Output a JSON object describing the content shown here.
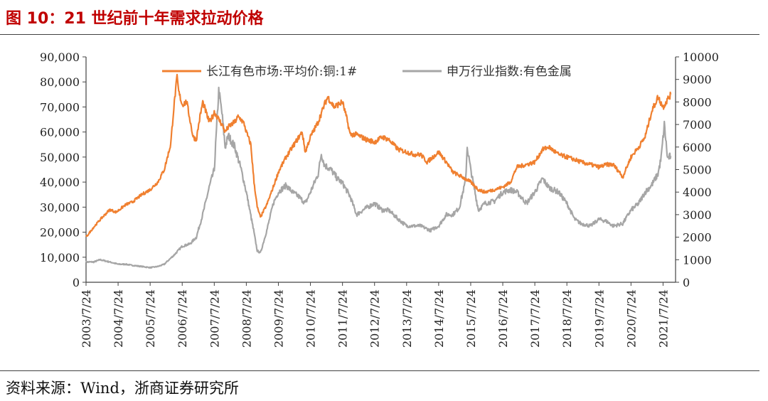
{
  "figure": {
    "title": "图 10：21 世纪前十年需求拉动价格",
    "source": "资料来源：Wind，浙商证券研究所"
  },
  "chart_data": {
    "type": "line",
    "dual_axis": true,
    "x_ticks": [
      "2003/7/24",
      "2004/7/24",
      "2005/7/24",
      "2006/7/24",
      "2007/7/24",
      "2008/7/24",
      "2009/7/24",
      "2010/7/24",
      "2011/7/24",
      "2012/7/24",
      "2013/7/24",
      "2014/7/24",
      "2015/7/24",
      "2016/7/24",
      "2017/7/24",
      "2018/7/24",
      "2019/7/24",
      "2020/7/24",
      "2021/7/24"
    ],
    "y_left": {
      "min": 0,
      "max": 90000,
      "step": 10000,
      "tick_labels": [
        "0",
        "10,000",
        "20,000",
        "30,000",
        "40,000",
        "50,000",
        "60,000",
        "70,000",
        "80,000",
        "90,000"
      ]
    },
    "y_right": {
      "min": 0,
      "max": 10000,
      "step": 1000,
      "tick_labels": [
        "0",
        "1000",
        "2000",
        "3000",
        "4000",
        "5000",
        "6000",
        "7000",
        "8000",
        "9000",
        "10000"
      ]
    },
    "legend_placement": "top-center",
    "series": [
      {
        "name": "长江有色市场:平均价:铜:1#",
        "axis": "left",
        "color": "#f08030",
        "x": [
          2003.56,
          2003.8,
          2004.0,
          2004.3,
          2004.5,
          2004.8,
          2005.0,
          2005.3,
          2005.56,
          2005.8,
          2006.0,
          2006.2,
          2006.3,
          2006.4,
          2006.45,
          2006.56,
          2006.7,
          2006.8,
          2006.9,
          2007.0,
          2007.1,
          2007.2,
          2007.3,
          2007.4,
          2007.5,
          2007.56,
          2007.7,
          2007.8,
          2007.9,
          2008.0,
          2008.2,
          2008.3,
          2008.4,
          2008.5,
          2008.56,
          2008.7,
          2008.8,
          2008.9,
          2009.0,
          2009.2,
          2009.4,
          2009.56,
          2009.8,
          2010.0,
          2010.3,
          2010.4,
          2010.56,
          2010.8,
          2011.0,
          2011.1,
          2011.3,
          2011.56,
          2011.7,
          2011.8,
          2012.0,
          2012.3,
          2012.56,
          2012.8,
          2013.0,
          2013.3,
          2013.56,
          2013.8,
          2014.0,
          2014.2,
          2014.56,
          2014.8,
          2015.0,
          2015.3,
          2015.56,
          2015.8,
          2016.0,
          2016.3,
          2016.56,
          2016.8,
          2017.0,
          2017.3,
          2017.56,
          2017.8,
          2018.0,
          2018.3,
          2018.56,
          2018.8,
          2019.0,
          2019.3,
          2019.56,
          2019.8,
          2020.0,
          2020.2,
          2020.3,
          2020.56,
          2020.8,
          2021.0,
          2021.2,
          2021.4,
          2021.56,
          2021.7,
          2021.8
        ],
        "y": [
          18000,
          22000,
          25000,
          29000,
          28000,
          31000,
          32000,
          35000,
          37000,
          40000,
          45000,
          55000,
          70000,
          82000,
          76000,
          71000,
          72000,
          65000,
          58000,
          57000,
          65000,
          72000,
          68000,
          64000,
          66000,
          68000,
          65000,
          63000,
          60000,
          62000,
          64000,
          66000,
          65000,
          63000,
          60000,
          55000,
          40000,
          30000,
          26000,
          31000,
          38000,
          44000,
          50000,
          54000,
          60000,
          52000,
          58000,
          64000,
          71000,
          74000,
          70000,
          72000,
          65000,
          59000,
          59000,
          57000,
          56000,
          58000,
          57000,
          53000,
          52000,
          51000,
          51000,
          48000,
          52000,
          48000,
          44000,
          42000,
          40000,
          37000,
          36000,
          37000,
          38000,
          40000,
          46000,
          47000,
          48000,
          53000,
          54000,
          51000,
          50000,
          49000,
          48000,
          47000,
          46000,
          47000,
          47000,
          44000,
          42000,
          50000,
          54000,
          58000,
          68000,
          74000,
          70000,
          73000,
          75000
        ]
      },
      {
        "name": "申万行业指数:有色金属",
        "axis": "right",
        "color": "#a6a6a6",
        "x": [
          2003.56,
          2003.8,
          2004.0,
          2004.3,
          2004.56,
          2004.8,
          2005.0,
          2005.3,
          2005.56,
          2005.8,
          2006.0,
          2006.3,
          2006.56,
          2006.8,
          2007.0,
          2007.2,
          2007.4,
          2007.56,
          2007.7,
          2007.8,
          2007.9,
          2008.0,
          2008.2,
          2008.4,
          2008.56,
          2008.8,
          2008.9,
          2009.0,
          2009.2,
          2009.4,
          2009.56,
          2009.8,
          2010.0,
          2010.2,
          2010.4,
          2010.56,
          2010.8,
          2010.9,
          2011.0,
          2011.2,
          2011.4,
          2011.56,
          2011.8,
          2012.0,
          2012.3,
          2012.56,
          2012.8,
          2013.0,
          2013.3,
          2013.56,
          2013.8,
          2014.0,
          2014.3,
          2014.56,
          2014.8,
          2015.0,
          2015.2,
          2015.4,
          2015.45,
          2015.56,
          2015.8,
          2016.0,
          2016.3,
          2016.56,
          2016.8,
          2017.0,
          2017.3,
          2017.56,
          2017.8,
          2018.0,
          2018.3,
          2018.56,
          2018.8,
          2019.0,
          2019.3,
          2019.56,
          2019.8,
          2020.0,
          2020.3,
          2020.56,
          2020.8,
          2021.0,
          2021.2,
          2021.4,
          2021.5,
          2021.6,
          2021.7,
          2021.8
        ],
        "y": [
          900,
          900,
          1000,
          900,
          800,
          800,
          750,
          700,
          650,
          700,
          800,
          1200,
          1600,
          1700,
          2000,
          3000,
          4200,
          5000,
          8500,
          7500,
          6000,
          6500,
          6000,
          5000,
          4000,
          2200,
          1400,
          1300,
          2300,
          3500,
          4000,
          4300,
          4000,
          3800,
          3500,
          4000,
          4800,
          5700,
          5200,
          5000,
          4600,
          4400,
          3800,
          3000,
          3300,
          3500,
          3200,
          3200,
          2800,
          2500,
          2500,
          2500,
          2300,
          2500,
          3000,
          3000,
          3300,
          4500,
          6000,
          5000,
          3200,
          3500,
          3600,
          4000,
          4100,
          4000,
          3500,
          4000,
          4600,
          4200,
          4000,
          3500,
          2800,
          2600,
          2500,
          2800,
          2700,
          2500,
          2600,
          3200,
          3500,
          4000,
          4300,
          4800,
          5500,
          7000,
          5500,
          5600
        ]
      }
    ]
  }
}
